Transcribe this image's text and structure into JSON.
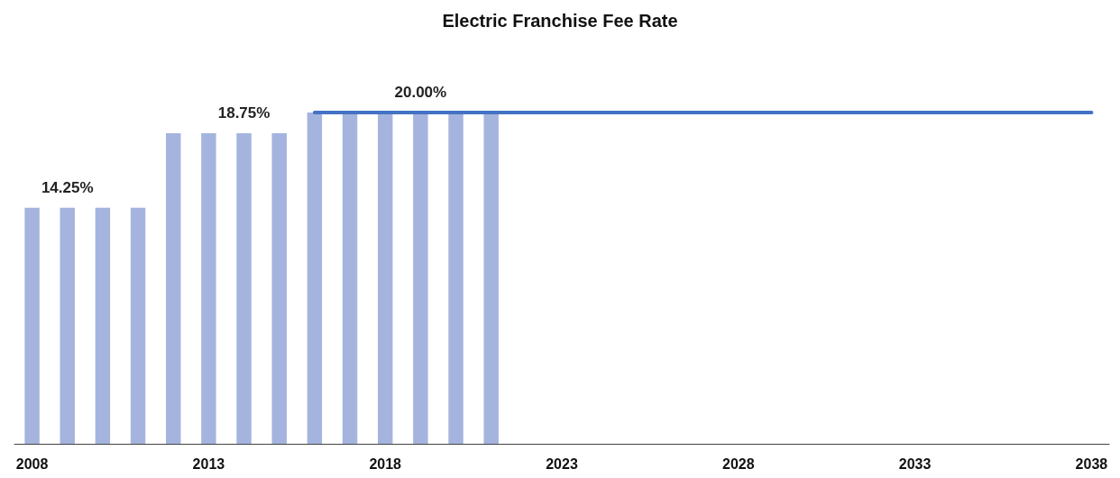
{
  "chart_data": {
    "type": "bar",
    "title": "Electric Franchise Fee Rate",
    "categories": [
      "2008",
      null,
      null,
      null,
      null,
      "2013",
      null,
      null,
      null,
      null,
      "2018",
      null,
      null,
      null,
      null,
      "2023",
      null,
      null,
      null,
      null,
      "2028",
      null,
      null,
      null,
      null,
      "2033",
      null,
      null,
      null,
      null,
      "2038"
    ],
    "series": [
      {
        "color": "#a5b4de",
        "values": [
          14.25,
          14.25,
          14.25,
          14.25,
          18.75,
          18.75,
          18.75,
          18.75,
          20,
          20,
          20,
          20,
          20,
          20,
          null,
          null,
          null,
          null,
          null,
          null,
          null,
          null,
          null,
          null,
          null,
          null,
          null,
          null,
          null,
          null,
          null
        ],
        "value_labels": [
          null,
          "14.25%",
          null,
          null,
          null,
          null,
          "18.75%",
          null,
          null,
          null,
          null,
          "20.00%",
          null,
          null,
          null,
          null,
          null,
          null,
          null,
          null,
          null,
          null,
          null,
          null,
          null,
          null,
          null,
          null,
          null,
          null,
          null
        ]
      },
      {
        "type": "line",
        "color": "#4472c4",
        "values": [
          null,
          null,
          null,
          null,
          null,
          null,
          null,
          null,
          20,
          20,
          20,
          20,
          20,
          20,
          20,
          20,
          20,
          20,
          20,
          20,
          20,
          20,
          20,
          20,
          20,
          20,
          20,
          20,
          20,
          20,
          20
        ],
        "marker": "none"
      }
    ],
    "grid": false
  }
}
